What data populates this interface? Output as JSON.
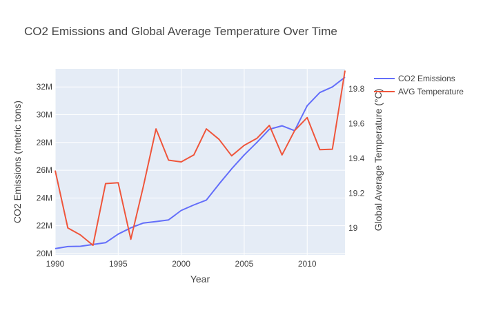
{
  "chart_data": {
    "type": "line",
    "title": "CO2 Emissions and Global Average Temperature Over Time",
    "xlabel": "Year",
    "ylabel": "CO2 Emissions (metric tons)",
    "y2label": "Global Average Temperature (°C)",
    "xlim": [
      1990,
      2013
    ],
    "ylim": [
      19900000,
      33300000
    ],
    "y2lim": [
      18.845,
      19.915
    ],
    "x_ticks": [
      1990,
      1995,
      2000,
      2005,
      2010
    ],
    "y_ticks": [
      {
        "value": 20000000,
        "label": "20M"
      },
      {
        "value": 22000000,
        "label": "22M"
      },
      {
        "value": 24000000,
        "label": "24M"
      },
      {
        "value": 26000000,
        "label": "26M"
      },
      {
        "value": 28000000,
        "label": "28M"
      },
      {
        "value": 30000000,
        "label": "30M"
      },
      {
        "value": 32000000,
        "label": "32M"
      }
    ],
    "y2_ticks": [
      {
        "value": 19.0,
        "label": "19"
      },
      {
        "value": 19.2,
        "label": "19.2"
      },
      {
        "value": 19.4,
        "label": "19.4"
      },
      {
        "value": 19.6,
        "label": "19.6"
      },
      {
        "value": 19.8,
        "label": "19.8"
      }
    ],
    "grid": true,
    "legend_position": "top-right",
    "x": [
      1990,
      1991,
      1992,
      1993,
      1994,
      1995,
      1996,
      1997,
      1998,
      1999,
      2000,
      2001,
      2002,
      2003,
      2004,
      2005,
      2006,
      2007,
      2008,
      2009,
      2010,
      2011,
      2012,
      2013
    ],
    "series": [
      {
        "name": "CO2 Emissions",
        "axis": "y",
        "color": "#636efa",
        "values": [
          20350000,
          20500000,
          20520000,
          20650000,
          20780000,
          21400000,
          21850000,
          22200000,
          22300000,
          22420000,
          23100000,
          23500000,
          23850000,
          25000000,
          26100000,
          27100000,
          28000000,
          28950000,
          29200000,
          28850000,
          30650000,
          31600000,
          32000000,
          32700000
        ]
      },
      {
        "name": "AVG Temperature",
        "axis": "y2",
        "color": "#ef553b",
        "values": [
          19.33,
          19.0,
          18.96,
          18.9,
          19.255,
          19.26,
          18.935,
          19.24,
          19.57,
          19.39,
          19.38,
          19.42,
          19.57,
          19.51,
          19.415,
          19.475,
          19.515,
          19.59,
          19.42,
          19.56,
          19.635,
          19.45,
          19.453,
          19.905
        ]
      }
    ]
  }
}
